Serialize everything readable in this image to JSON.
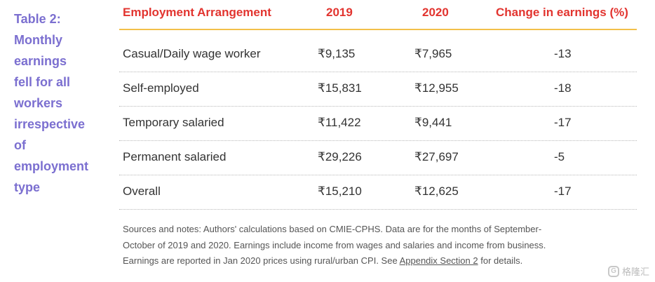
{
  "caption": {
    "lines": [
      "Table 2:",
      "Monthly",
      "earnings",
      "fell for all",
      "workers",
      "irrespective",
      "of",
      "employment",
      "type"
    ]
  },
  "table": {
    "headers": [
      "Employment Arrangement",
      "2019",
      "2020",
      "Change in earnings (%)"
    ],
    "rows": [
      [
        "Casual/Daily wage worker",
        "₹9,135",
        "₹7,965",
        "-13"
      ],
      [
        "Self-employed",
        "₹15,831",
        "₹12,955",
        "-18"
      ],
      [
        "Temporary salaried",
        "₹11,422",
        "₹9,441",
        "-17"
      ],
      [
        "Permanent salaried",
        "₹29,226",
        "₹27,697",
        "-5"
      ],
      [
        "Overall",
        "₹15,210",
        "₹12,625",
        "-17"
      ]
    ]
  },
  "notes": {
    "line1": "Sources and notes: Authors' calculations based on CMIE-CPHS. Data are for the months of September-",
    "line2": "October of 2019 and 2020. Earnings include income from wages and salaries and income from business.",
    "line3_pre": "Earnings are reported in Jan 2020 prices using rural/urban CPI. See ",
    "link": "Appendix Section 2",
    "line3_post": " for details."
  },
  "watermark": {
    "text": "格隆汇",
    "logo_letter": "G"
  }
}
